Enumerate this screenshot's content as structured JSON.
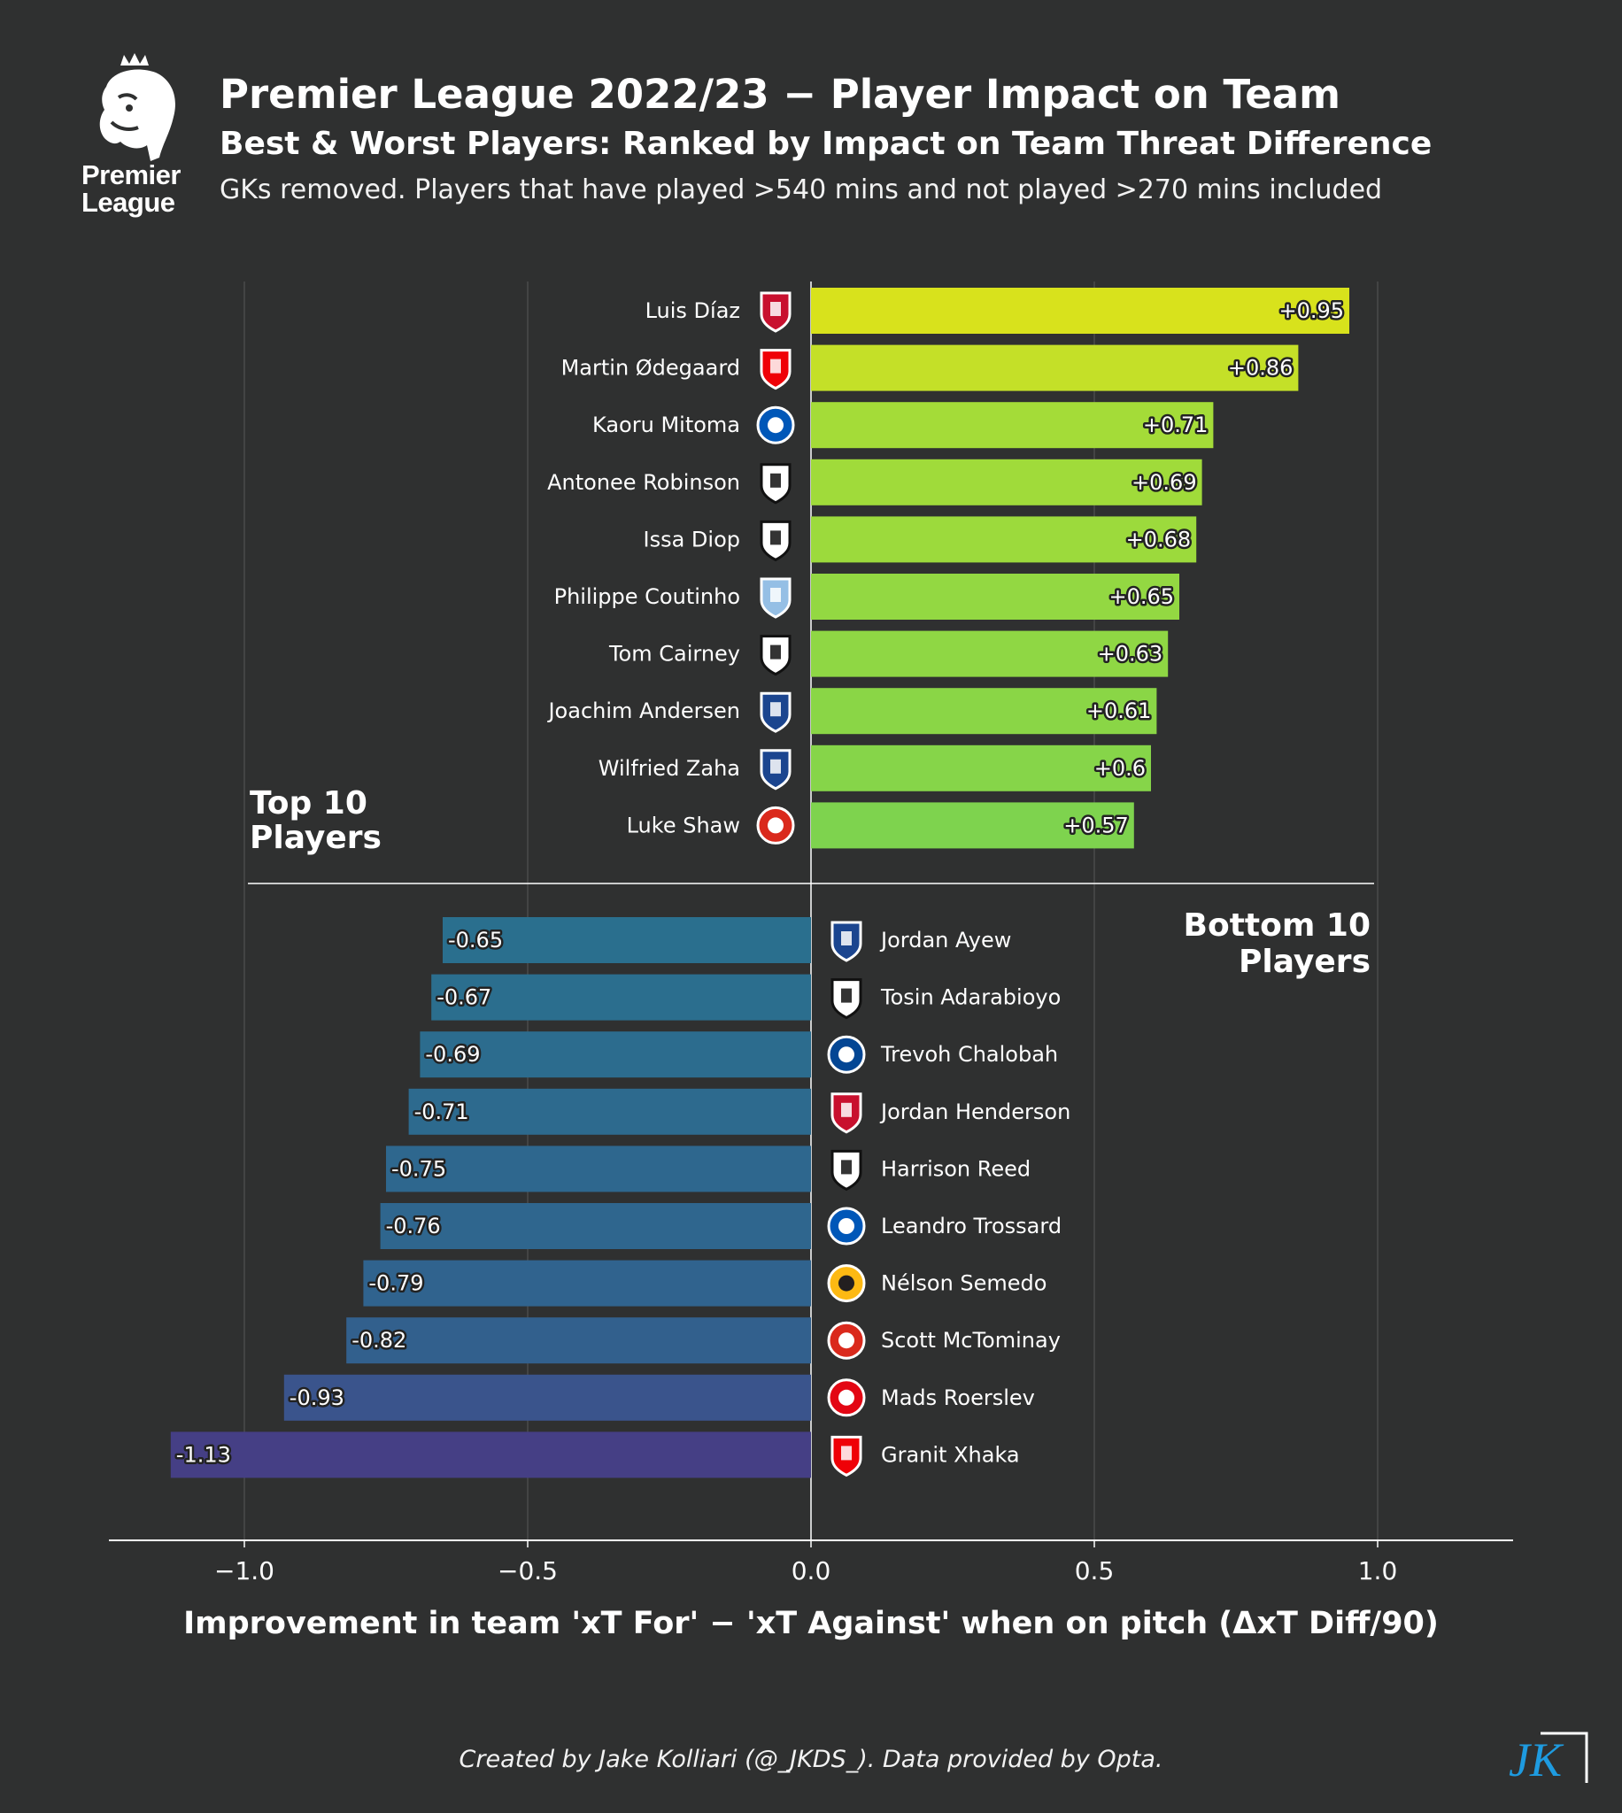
{
  "logo": {
    "line1": "Premier",
    "line2": "League"
  },
  "header": {
    "title": "Premier League 2022/23 − Player Impact on Team",
    "subtitle": "Best & Worst Players: Ranked by Impact on Team Threat Difference",
    "note": "GKs removed. Players that have played  >540 mins and not played >270 mins included"
  },
  "chart_data": {
    "type": "bar",
    "orientation": "horizontal",
    "xlabel": "Improvement in team 'xT For' − 'xT Against' when on pitch (ΔxT Diff/90)",
    "xlim": [
      -1.24,
      1.24
    ],
    "xticks": [
      -1.0,
      -0.5,
      0.0,
      0.5,
      1.0
    ],
    "xtick_labels": [
      "−1.0",
      "−0.5",
      "0.0",
      "0.5",
      "1.0"
    ],
    "grid": true,
    "top_label": "Top 10\nPlayers",
    "bottom_label": "Bottom 10\nPlayers",
    "top10": [
      {
        "player": "Luis Díaz",
        "team": "Liverpool",
        "value": 0.95,
        "label": "+0.95",
        "color": "#d8e21c"
      },
      {
        "player": "Martin Ødegaard",
        "team": "Arsenal",
        "value": 0.86,
        "label": "+0.86",
        "color": "#c4e028"
      },
      {
        "player": "Kaoru Mitoma",
        "team": "Brighton",
        "value": 0.71,
        "label": "+0.71",
        "color": "#a4dc38"
      },
      {
        "player": "Antonee Robinson",
        "team": "Fulham",
        "value": 0.69,
        "label": "+0.69",
        "color": "#a0db3a"
      },
      {
        "player": "Issa Diop",
        "team": "Fulham",
        "value": 0.68,
        "label": "+0.68",
        "color": "#9cda3c"
      },
      {
        "player": "Philippe Coutinho",
        "team": "Aston Villa",
        "value": 0.65,
        "label": "+0.65",
        "color": "#93d842"
      },
      {
        "player": "Tom Cairney",
        "team": "Fulham",
        "value": 0.63,
        "label": "+0.63",
        "color": "#8fd744"
      },
      {
        "player": "Joachim Andersen",
        "team": "Crystal Palace",
        "value": 0.61,
        "label": "+0.61",
        "color": "#8ad646"
      },
      {
        "player": "Wilfried Zaha",
        "team": "Crystal Palace",
        "value": 0.6,
        "label": "+0.6",
        "color": "#86d549"
      },
      {
        "player": "Luke Shaw",
        "team": "Manchester United",
        "value": 0.57,
        "label": "+0.57",
        "color": "#7ed34e"
      }
    ],
    "bottom10": [
      {
        "player": "Jordan Ayew",
        "team": "Crystal Palace",
        "value": -0.65,
        "label": "-0.65",
        "color": "#2a6f8e"
      },
      {
        "player": "Tosin Adarabioyo",
        "team": "Fulham",
        "value": -0.67,
        "label": "-0.67",
        "color": "#2b6e8e"
      },
      {
        "player": "Trevoh Chalobah",
        "team": "Chelsea",
        "value": -0.69,
        "label": "-0.69",
        "color": "#2c6c8e"
      },
      {
        "player": "Jordan Henderson",
        "team": "Liverpool",
        "value": -0.71,
        "label": "-0.71",
        "color": "#2d6a8e"
      },
      {
        "player": "Harrison Reed",
        "team": "Fulham",
        "value": -0.75,
        "label": "-0.75",
        "color": "#2e678e"
      },
      {
        "player": "Leandro Trossard",
        "team": "Brighton",
        "value": -0.76,
        "label": "-0.76",
        "color": "#2f668e"
      },
      {
        "player": "Nélson Semedo",
        "team": "Wolves",
        "value": -0.79,
        "label": "-0.79",
        "color": "#30638e"
      },
      {
        "player": "Scott McTominay",
        "team": "Manchester United",
        "value": -0.82,
        "label": "-0.82",
        "color": "#32608d"
      },
      {
        "player": "Mads Roerslev",
        "team": "Brentford",
        "value": -0.93,
        "label": "-0.93",
        "color": "#3a548c"
      },
      {
        "player": "Granit Xhaka",
        "team": "Arsenal",
        "value": -1.13,
        "label": "-1.13",
        "color": "#453f85"
      }
    ]
  },
  "footer": {
    "credit": "Created by Jake Kolliari (@_JKDS_). Data provided by Opta.",
    "signature": "JK"
  },
  "badge_colors": {
    "Liverpool": "#c8102e",
    "Arsenal": "#ef0107",
    "Brighton": "#0057b8",
    "Fulham": "#111111",
    "Aston Villa": "#95bfe5",
    "Crystal Palace": "#1b458f",
    "Manchester United": "#da291c",
    "Chelsea": "#034694",
    "Wolves": "#fdb913",
    "Brentford": "#e30613"
  }
}
